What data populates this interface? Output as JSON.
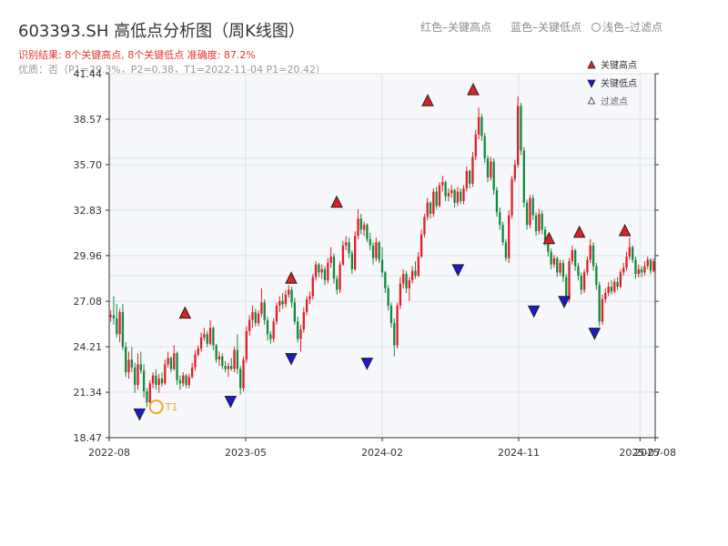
{
  "title": "603393.SH 高低点分析图（周K线图）",
  "subtitle": "识别结果: 8个关键高点, 8个关键低点   准确度: 87.2%",
  "subtitle2": "优质：否（P1=29.3%，P2=0.38，T1=2022-11-04 P1=20.42）",
  "captions": {
    "red": "红色–关键高点",
    "blue": "蓝色–关键低点",
    "light": "浅色–过滤点"
  },
  "colors": {
    "up": "#e01f26",
    "down": "#138a3c",
    "high_marker": "#e02020",
    "low_marker": "#1a1ad0",
    "t1_ring": "#f5a623",
    "plot_bg": "#f6f8fb",
    "grid": "#dde2ea"
  },
  "legend": {
    "position": "top-right",
    "high": "关键高点",
    "low": "关键低点",
    "filtered": "过滤点"
  },
  "t1_label": "T1",
  "chart_data": {
    "type": "candlestick",
    "x_axis": {
      "ticks": [
        "2022-08",
        "2023-05",
        "2024-02",
        "2024-11",
        "2025-07",
        "2025-08"
      ],
      "range": [
        "2022-08",
        "2025-08"
      ]
    },
    "y_axis": {
      "ticks": [
        "18.47",
        "21.34",
        "24.21",
        "27.08",
        "29.96",
        "32.83",
        "35.70",
        "38.57",
        "41.44"
      ],
      "range": [
        18.47,
        41.44
      ]
    },
    "grid": true,
    "series": [
      {
        "name": "关键高点",
        "points": [
          {
            "date": "2023-01",
            "value": 25.9
          },
          {
            "date": "2023-08",
            "value": 28.1
          },
          {
            "date": "2023-11",
            "value": 32.9
          },
          {
            "date": "2024-05",
            "value": 39.3
          },
          {
            "date": "2024-08",
            "value": 40.0
          },
          {
            "date": "2025-01",
            "value": 30.6
          },
          {
            "date": "2025-03",
            "value": 31.0
          },
          {
            "date": "2025-06",
            "value": 31.1
          }
        ]
      },
      {
        "name": "关键低点",
        "points": [
          {
            "date": "2022-10",
            "value": 20.4
          },
          {
            "date": "2023-04",
            "value": 21.2
          },
          {
            "date": "2023-08",
            "value": 23.9
          },
          {
            "date": "2024-01",
            "value": 23.6
          },
          {
            "date": "2024-07",
            "value": 29.5
          },
          {
            "date": "2024-12",
            "value": 26.9
          },
          {
            "date": "2025-02",
            "value": 27.5
          },
          {
            "date": "2025-04",
            "value": 25.5
          }
        ]
      }
    ],
    "t1": {
      "date": "2022-11-04",
      "value": 20.42
    },
    "candles": [
      [
        26.1,
        26.5,
        25.8,
        26.2
      ],
      [
        26.2,
        27.4,
        25.6,
        26.0
      ],
      [
        26.0,
        26.9,
        24.8,
        25.0
      ],
      [
        25.0,
        26.6,
        24.5,
        26.4
      ],
      [
        26.4,
        26.9,
        24.0,
        24.2
      ],
      [
        24.2,
        24.5,
        22.3,
        22.6
      ],
      [
        22.6,
        23.9,
        22.2,
        23.4
      ],
      [
        23.4,
        24.2,
        22.6,
        22.9
      ],
      [
        22.9,
        23.2,
        21.3,
        21.8
      ],
      [
        21.8,
        23.8,
        21.5,
        23.1
      ],
      [
        23.1,
        23.9,
        22.5,
        22.7
      ],
      [
        22.7,
        23.1,
        21.0,
        21.4
      ],
      [
        21.4,
        21.6,
        20.4,
        20.7
      ],
      [
        20.7,
        22.1,
        20.4,
        21.9
      ],
      [
        21.9,
        22.6,
        21.6,
        22.4
      ],
      [
        22.4,
        22.8,
        21.5,
        21.8
      ],
      [
        21.8,
        22.5,
        21.3,
        22.2
      ],
      [
        22.2,
        22.6,
        21.7,
        21.9
      ],
      [
        21.9,
        23.4,
        21.8,
        23.1
      ],
      [
        23.1,
        23.9,
        22.9,
        23.5
      ],
      [
        23.5,
        23.6,
        22.6,
        22.8
      ],
      [
        22.8,
        24.3,
        22.7,
        23.8
      ],
      [
        23.8,
        23.9,
        21.8,
        22.1
      ],
      [
        22.1,
        22.4,
        21.5,
        21.9
      ],
      [
        21.9,
        22.6,
        21.7,
        22.4
      ],
      [
        22.4,
        22.5,
        21.6,
        21.8
      ],
      [
        21.8,
        22.5,
        21.6,
        22.3
      ],
      [
        22.3,
        23.2,
        22.2,
        22.9
      ],
      [
        22.9,
        24.0,
        22.7,
        23.7
      ],
      [
        23.7,
        24.3,
        23.6,
        24.1
      ],
      [
        24.1,
        25.1,
        23.9,
        24.8
      ],
      [
        24.8,
        25.4,
        24.6,
        25.0
      ],
      [
        25.0,
        25.2,
        24.2,
        24.4
      ],
      [
        24.4,
        25.9,
        24.3,
        25.4
      ],
      [
        25.4,
        25.5,
        24.0,
        24.3
      ],
      [
        24.3,
        24.4,
        23.2,
        23.4
      ],
      [
        23.4,
        23.9,
        23.0,
        23.6
      ],
      [
        23.6,
        23.8,
        22.8,
        23.0
      ],
      [
        23.0,
        23.3,
        22.6,
        22.8
      ],
      [
        22.8,
        23.2,
        22.3,
        23.0
      ],
      [
        23.0,
        23.5,
        22.7,
        22.8
      ],
      [
        22.8,
        24.2,
        22.6,
        24.0
      ],
      [
        24.0,
        25.0,
        22.5,
        22.8
      ],
      [
        22.8,
        23.0,
        21.2,
        21.6
      ],
      [
        21.6,
        23.6,
        21.4,
        23.4
      ],
      [
        23.4,
        25.5,
        23.2,
        25.2
      ],
      [
        25.2,
        26.2,
        24.9,
        25.9
      ],
      [
        25.9,
        26.8,
        25.4,
        26.4
      ],
      [
        26.4,
        26.6,
        25.5,
        25.7
      ],
      [
        25.7,
        26.5,
        25.5,
        26.3
      ],
      [
        26.3,
        27.9,
        26.1,
        27.0
      ],
      [
        27.0,
        27.2,
        25.6,
        25.9
      ],
      [
        25.9,
        26.1,
        24.6,
        25.0
      ],
      [
        25.0,
        25.2,
        24.4,
        24.7
      ],
      [
        24.7,
        26.0,
        24.5,
        25.8
      ],
      [
        25.8,
        27.0,
        25.6,
        26.8
      ],
      [
        26.8,
        27.4,
        26.4,
        27.1
      ],
      [
        27.1,
        27.6,
        26.6,
        26.9
      ],
      [
        26.9,
        27.8,
        26.7,
        27.5
      ],
      [
        27.5,
        28.1,
        27.3,
        27.8
      ],
      [
        27.8,
        28.0,
        26.7,
        27.0
      ],
      [
        27.0,
        27.3,
        25.6,
        25.8
      ],
      [
        25.8,
        26.1,
        24.5,
        24.7
      ],
      [
        24.7,
        25.6,
        23.9,
        25.3
      ],
      [
        25.3,
        26.7,
        25.1,
        26.4
      ],
      [
        26.4,
        27.4,
        26.2,
        27.2
      ],
      [
        27.2,
        27.7,
        26.9,
        27.4
      ],
      [
        27.4,
        28.8,
        27.2,
        28.6
      ],
      [
        28.6,
        29.6,
        28.4,
        29.4
      ],
      [
        29.4,
        29.5,
        28.6,
        28.9
      ],
      [
        28.9,
        29.4,
        28.5,
        29.1
      ],
      [
        29.1,
        29.3,
        28.1,
        28.4
      ],
      [
        28.4,
        29.8,
        28.2,
        29.5
      ],
      [
        29.5,
        30.5,
        29.2,
        29.9
      ],
      [
        29.9,
        30.1,
        28.2,
        28.5
      ],
      [
        28.5,
        28.7,
        27.5,
        27.8
      ],
      [
        27.8,
        29.6,
        27.6,
        29.4
      ],
      [
        29.4,
        30.9,
        29.3,
        30.6
      ],
      [
        30.6,
        31.2,
        30.3,
        30.8
      ],
      [
        30.8,
        31.1,
        29.8,
        30.1
      ],
      [
        30.1,
        30.3,
        28.8,
        29.1
      ],
      [
        29.1,
        31.5,
        29.0,
        31.2
      ],
      [
        31.2,
        32.9,
        31.0,
        32.3
      ],
      [
        32.3,
        32.6,
        31.3,
        31.6
      ],
      [
        31.6,
        32.1,
        31.2,
        31.9
      ],
      [
        31.9,
        32.0,
        30.8,
        31.0
      ],
      [
        31.0,
        31.4,
        30.3,
        30.6
      ],
      [
        30.6,
        30.8,
        29.4,
        29.8
      ],
      [
        29.8,
        31.1,
        29.6,
        30.8
      ],
      [
        30.8,
        30.9,
        29.5,
        29.7
      ],
      [
        29.7,
        30.5,
        28.6,
        28.9
      ],
      [
        28.9,
        29.0,
        27.6,
        27.9
      ],
      [
        27.9,
        28.1,
        26.5,
        26.8
      ],
      [
        26.8,
        27.0,
        25.4,
        25.7
      ],
      [
        25.7,
        26.0,
        23.6,
        24.3
      ],
      [
        24.3,
        27.0,
        24.1,
        26.8
      ],
      [
        26.8,
        28.6,
        26.6,
        28.2
      ],
      [
        28.2,
        29.1,
        27.9,
        28.8
      ],
      [
        28.8,
        29.0,
        27.6,
        27.9
      ],
      [
        27.9,
        28.6,
        27.1,
        28.4
      ],
      [
        28.4,
        29.3,
        28.2,
        29.0
      ],
      [
        29.0,
        29.6,
        28.5,
        28.7
      ],
      [
        28.7,
        30.2,
        28.6,
        29.9
      ],
      [
        29.9,
        31.6,
        29.8,
        31.3
      ],
      [
        31.3,
        32.6,
        31.1,
        32.4
      ],
      [
        32.4,
        33.6,
        32.2,
        33.3
      ],
      [
        33.3,
        33.4,
        32.3,
        32.6
      ],
      [
        32.6,
        34.2,
        32.4,
        34.0
      ],
      [
        34.0,
        34.3,
        32.9,
        33.1
      ],
      [
        33.1,
        34.6,
        33.0,
        34.4
      ],
      [
        34.4,
        35.0,
        34.0,
        34.6
      ],
      [
        34.6,
        34.7,
        33.4,
        33.7
      ],
      [
        33.7,
        34.2,
        33.4,
        33.9
      ],
      [
        33.9,
        34.4,
        33.6,
        34.1
      ],
      [
        34.1,
        34.2,
        33.0,
        33.3
      ],
      [
        33.3,
        34.3,
        33.1,
        34.0
      ],
      [
        34.0,
        34.2,
        33.2,
        33.4
      ],
      [
        33.4,
        34.4,
        33.2,
        34.2
      ],
      [
        34.2,
        35.6,
        34.0,
        35.3
      ],
      [
        35.3,
        35.4,
        34.2,
        34.5
      ],
      [
        34.5,
        36.5,
        34.3,
        36.2
      ],
      [
        36.2,
        37.9,
        36.0,
        37.6
      ],
      [
        37.6,
        39.3,
        37.3,
        38.7
      ],
      [
        38.7,
        38.9,
        37.2,
        37.5
      ],
      [
        37.5,
        37.7,
        35.8,
        36.1
      ],
      [
        36.1,
        36.3,
        34.6,
        34.9
      ],
      [
        34.9,
        36.2,
        34.7,
        35.9
      ],
      [
        35.9,
        36.1,
        33.8,
        34.1
      ],
      [
        34.1,
        34.3,
        32.4,
        32.7
      ],
      [
        32.7,
        33.0,
        31.6,
        31.9
      ],
      [
        31.9,
        32.1,
        30.6,
        30.8
      ],
      [
        30.8,
        31.0,
        29.6,
        29.8
      ],
      [
        29.8,
        32.8,
        29.5,
        32.5
      ],
      [
        32.5,
        35.0,
        32.3,
        34.8
      ],
      [
        34.8,
        36.0,
        34.6,
        35.7
      ],
      [
        35.7,
        40.0,
        35.5,
        39.4
      ],
      [
        39.4,
        39.6,
        36.3,
        36.6
      ],
      [
        36.6,
        36.8,
        33.0,
        33.3
      ],
      [
        33.3,
        33.5,
        31.6,
        31.9
      ],
      [
        31.9,
        33.8,
        31.7,
        33.6
      ],
      [
        33.6,
        33.8,
        32.2,
        32.5
      ],
      [
        32.5,
        32.7,
        31.2,
        31.5
      ],
      [
        31.5,
        32.9,
        31.3,
        32.6
      ],
      [
        32.6,
        32.8,
        31.3,
        31.6
      ],
      [
        31.6,
        31.8,
        30.6,
        30.9
      ],
      [
        30.9,
        31.1,
        29.9,
        30.2
      ],
      [
        30.2,
        30.4,
        29.1,
        29.4
      ],
      [
        29.4,
        30.0,
        29.2,
        29.8
      ],
      [
        29.8,
        29.9,
        28.6,
        28.9
      ],
      [
        28.9,
        29.7,
        28.7,
        29.5
      ],
      [
        29.5,
        29.7,
        28.3,
        28.6
      ],
      [
        28.6,
        28.8,
        26.9,
        27.2
      ],
      [
        27.2,
        29.8,
        27.0,
        29.6
      ],
      [
        29.6,
        30.6,
        29.4,
        30.3
      ],
      [
        30.3,
        30.4,
        29.0,
        29.3
      ],
      [
        29.3,
        29.5,
        28.4,
        28.7
      ],
      [
        28.7,
        28.9,
        27.5,
        27.8
      ],
      [
        27.8,
        29.1,
        27.6,
        28.9
      ],
      [
        28.9,
        29.9,
        28.7,
        29.7
      ],
      [
        29.7,
        31.0,
        29.5,
        30.6
      ],
      [
        30.6,
        30.8,
        29.0,
        29.3
      ],
      [
        29.3,
        29.5,
        27.8,
        28.1
      ],
      [
        28.1,
        28.3,
        25.5,
        25.8
      ],
      [
        25.8,
        27.5,
        25.6,
        27.2
      ],
      [
        27.2,
        27.9,
        27.0,
        27.6
      ],
      [
        27.6,
        28.3,
        27.4,
        28.0
      ],
      [
        28.0,
        28.4,
        27.5,
        27.7
      ],
      [
        27.7,
        28.5,
        27.6,
        28.3
      ],
      [
        28.3,
        28.6,
        27.8,
        28.0
      ],
      [
        28.0,
        29.1,
        27.9,
        28.9
      ],
      [
        28.9,
        29.5,
        28.7,
        29.2
      ],
      [
        29.2,
        30.2,
        29.0,
        29.9
      ],
      [
        29.9,
        31.1,
        29.7,
        30.5
      ],
      [
        30.5,
        30.6,
        29.5,
        29.7
      ],
      [
        29.7,
        29.9,
        28.5,
        28.8
      ],
      [
        28.8,
        29.4,
        28.6,
        29.1
      ],
      [
        29.1,
        29.3,
        28.6,
        28.9
      ],
      [
        28.9,
        29.6,
        28.7,
        29.3
      ],
      [
        29.3,
        29.9,
        29.1,
        29.7
      ],
      [
        29.7,
        29.8,
        28.8,
        29.0
      ],
      [
        29.0,
        29.8,
        28.9,
        29.6
      ]
    ]
  }
}
